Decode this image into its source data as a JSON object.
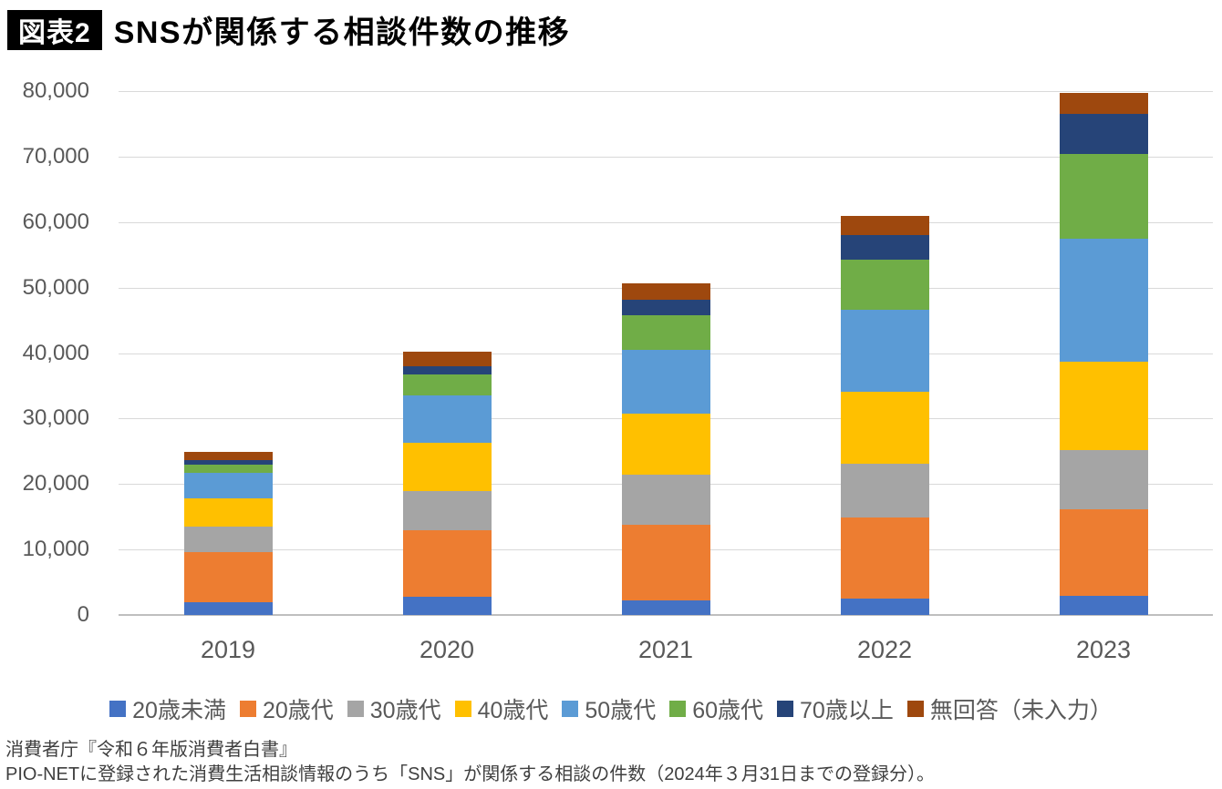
{
  "header": {
    "badge": "図表2",
    "title": "SNSが関係する相談件数の推移"
  },
  "chart_data": {
    "type": "bar",
    "stacked": true,
    "title": "SNSが関係する相談件数の推移",
    "categories": [
      "2019",
      "2020",
      "2021",
      "2022",
      "2023"
    ],
    "series": [
      {
        "name": "20歳未満",
        "color": "#4472C4",
        "values": [
          2000,
          2750,
          2200,
          2450,
          2950
        ]
      },
      {
        "name": "20歳代",
        "color": "#ED7D31",
        "values": [
          7600,
          10200,
          11600,
          12400,
          13200
        ]
      },
      {
        "name": "30歳代",
        "color": "#A5A5A5",
        "values": [
          3900,
          6000,
          7650,
          8200,
          9050
        ]
      },
      {
        "name": "40歳代",
        "color": "#FFC000",
        "values": [
          4300,
          7400,
          9300,
          11100,
          13500
        ]
      },
      {
        "name": "50歳代",
        "color": "#5B9BD5",
        "values": [
          3900,
          7200,
          9700,
          12400,
          18800
        ]
      },
      {
        "name": "60歳代",
        "color": "#70AD47",
        "values": [
          1250,
          3200,
          5300,
          7650,
          12950
        ]
      },
      {
        "name": "70歳以上",
        "color": "#264478",
        "values": [
          700,
          1250,
          2400,
          3750,
          6100
        ]
      },
      {
        "name": "無回答（未入力）",
        "color": "#9E480E",
        "values": [
          1250,
          2200,
          2500,
          2950,
          3200
        ]
      }
    ],
    "totals_approx": [
      24900,
      40200,
      50650,
      60900,
      79750
    ],
    "xlabel": "",
    "ylabel": "",
    "ylim": [
      0,
      80000
    ],
    "y_tick_step": 10000,
    "y_ticks": [
      "0",
      "10,000",
      "20,000",
      "30,000",
      "40,000",
      "50,000",
      "60,000",
      "70,000",
      "80,000"
    ],
    "grid": true,
    "legend_position": "bottom"
  },
  "footer": {
    "line1": "消費者庁『令和６年版消費者白書』",
    "line2": "PIO-NETに登録された消費生活相談情報のうち「SNS」が関係する相談の件数（2024年３月31日までの登録分）。"
  },
  "colors": {
    "gridline": "#D9D9D9",
    "axis_line": "#BFBFBF",
    "tick_text": "#595959",
    "footer_text": "#3F3F3F",
    "badge_bg": "#000000",
    "badge_text": "#FFFFFF"
  }
}
